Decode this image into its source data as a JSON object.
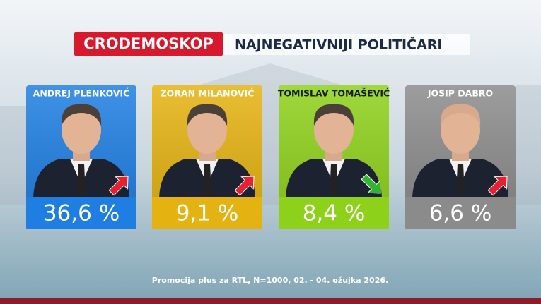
{
  "header": {
    "brand": "CRODEMOSKOP",
    "title": "NAJNEGATIVNIJI POLITIČARI"
  },
  "cards": [
    {
      "name": "ANDREJ PLENKOVIĆ",
      "value": "36,6 %",
      "color": "#1f7fe3",
      "trend": "up"
    },
    {
      "name": "ZORAN MILANOVIĆ",
      "value": "9,1 %",
      "color": "#e6b311",
      "trend": "up"
    },
    {
      "name": "TOMISLAV TOMAŠEVIĆ",
      "value": "8,4 %",
      "color": "#8fd21b",
      "trend": "down"
    },
    {
      "name": "JOSIP DABRO",
      "value": "6,6 %",
      "color": "#8c8c8c",
      "trend": "up"
    }
  ],
  "footer": "Promocija plus za RTL, N=1000, 02. - 04. ožujka 2026."
}
